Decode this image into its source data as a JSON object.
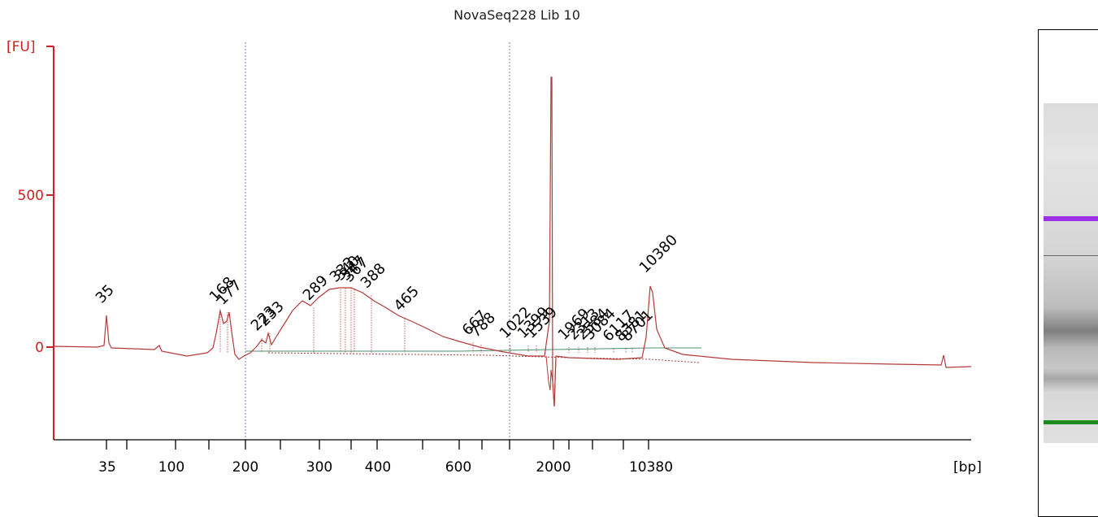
{
  "chart_data": {
    "type": "line",
    "title": "NovaSeq228 Lib 10",
    "ylabel": "[FU]",
    "xlabel": "[bp]",
    "yticks": [
      0,
      500
    ],
    "ylim": [
      -310,
      1000
    ],
    "x_tick_labels": [
      "35",
      "100",
      "200",
      "300",
      "400",
      "600",
      "2000",
      "10380"
    ],
    "colors": {
      "axis": "#d42020",
      "trace": "#b33a3a",
      "baseline": "#4f8f6f",
      "marker_guide": "#7b7bd0",
      "lower_marker": "#1c8a1c",
      "upper_marker": "#9b30e8"
    },
    "peaks": [
      {
        "label": "35",
        "color": "green",
        "fu": 110
      },
      {
        "label": "168",
        "fu": 125
      },
      {
        "label": "177",
        "fu": 115
      },
      {
        "label": "223",
        "fu": 30
      },
      {
        "label": "233",
        "fu": 45
      },
      {
        "label": "289",
        "fu": 130
      },
      {
        "label": "333",
        "fu": 190
      },
      {
        "label": "340",
        "fu": 195
      },
      {
        "label": "347",
        "fu": 195
      },
      {
        "label": "367",
        "fu": 190
      },
      {
        "label": "388",
        "fu": 170
      },
      {
        "label": "465",
        "fu": 95
      },
      {
        "label": "667",
        "fu": 15
      },
      {
        "label": "788",
        "fu": 8
      },
      {
        "label": "1022",
        "fu": 5
      },
      {
        "label": "1399",
        "fu": 5
      },
      {
        "label": "1539",
        "fu": 5
      },
      {
        "label": "1969",
        "fu": 0
      },
      {
        "label": "2313",
        "fu": 0
      },
      {
        "label": "2584",
        "fu": 0
      },
      {
        "label": "3084",
        "fu": 0
      },
      {
        "label": "6117",
        "fu": -5
      },
      {
        "label": "8381",
        "fu": -5
      },
      {
        "label": "8701",
        "fu": -5
      },
      {
        "label": "10380",
        "color": "purple",
        "fu": 210
      }
    ]
  }
}
